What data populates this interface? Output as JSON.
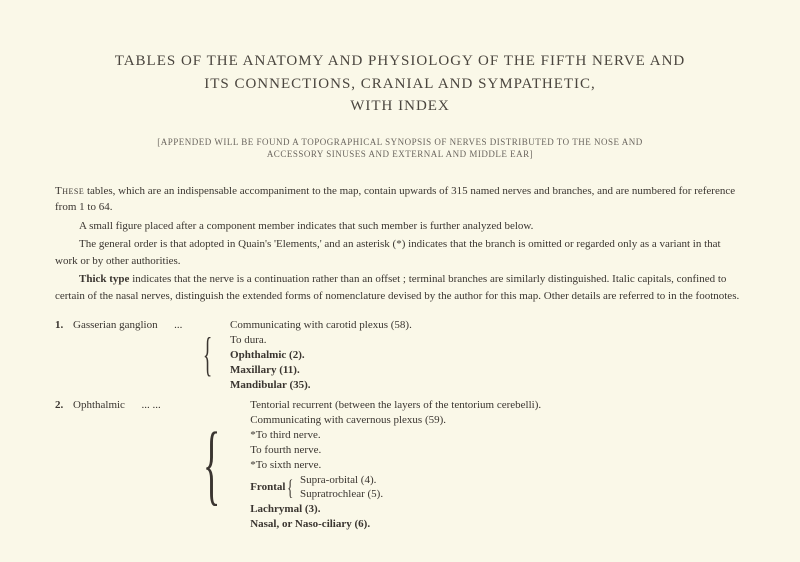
{
  "title": {
    "line1": "TABLES OF THE ANATOMY AND PHYSIOLOGY OF THE FIFTH NERVE AND",
    "line2": "ITS CONNECTIONS, CRANIAL AND SYMPATHETIC,",
    "line3": "WITH INDEX"
  },
  "appendix": {
    "line1": "[APPENDED WILL BE FOUND A TOPOGRAPHICAL SYNOPSIS OF NERVES DISTRIBUTED TO THE NOSE AND",
    "line2": "ACCESSORY SINUSES AND EXTERNAL AND MIDDLE EAR]"
  },
  "intro": {
    "p1a": "These",
    "p1b": " tables, which are an indispensable accompaniment to the map, contain upwards of 315 named nerves and branches, and are numbered for reference from 1 to 64.",
    "p2": "A small figure placed after a component member indicates that such member is further analyzed below.",
    "p3": "The general order is that adopted in Quain's 'Elements,' and an asterisk (*) indicates that the branch is omitted or regarded only as a variant in that work or by other authorities.",
    "p4a": "Thick type",
    "p4b": " indicates that the nerve is a continuation rather than an offset ; terminal branches are similarly distinguished. Italic capitals, confined to certain of the nasal nerves, distinguish the extended forms of nomenclature devised by the author for this map.   Other details are referred to in the footnotes."
  },
  "entries": [
    {
      "num": "1.",
      "label": "Gasserian ganglion",
      "dots": "...",
      "items": [
        {
          "text": "Communicating with carotid plexus (58).",
          "bold": false
        },
        {
          "text": "To dura.",
          "bold": false
        },
        {
          "text": "Ophthalmic (2).",
          "bold": true
        },
        {
          "text": "Maxillary (11).",
          "bold": true
        },
        {
          "text": "Mandibular (35).",
          "bold": true
        }
      ]
    },
    {
      "num": "2.",
      "label": "Ophthalmic",
      "dots": "...          ...",
      "items": [
        {
          "text": "Tentorial recurrent (between the layers of the tentorium cerebelli).",
          "bold": false
        },
        {
          "text": "Communicating with cavernous plexus (59).",
          "bold": false
        },
        {
          "text": "*To third nerve.",
          "bold": false
        },
        {
          "text": "To fourth nerve.",
          "bold": false
        },
        {
          "text": "*To sixth nerve.",
          "bold": false
        }
      ],
      "frontal": {
        "label": "Frontal",
        "sub": [
          "Supra-orbital (4).",
          "Supratrochlear (5)."
        ]
      },
      "tail": [
        {
          "text": "Lachrymal (3).",
          "bold": true
        },
        {
          "text": "Nasal, or Naso-ciliary (6).",
          "bold": true
        }
      ]
    }
  ]
}
